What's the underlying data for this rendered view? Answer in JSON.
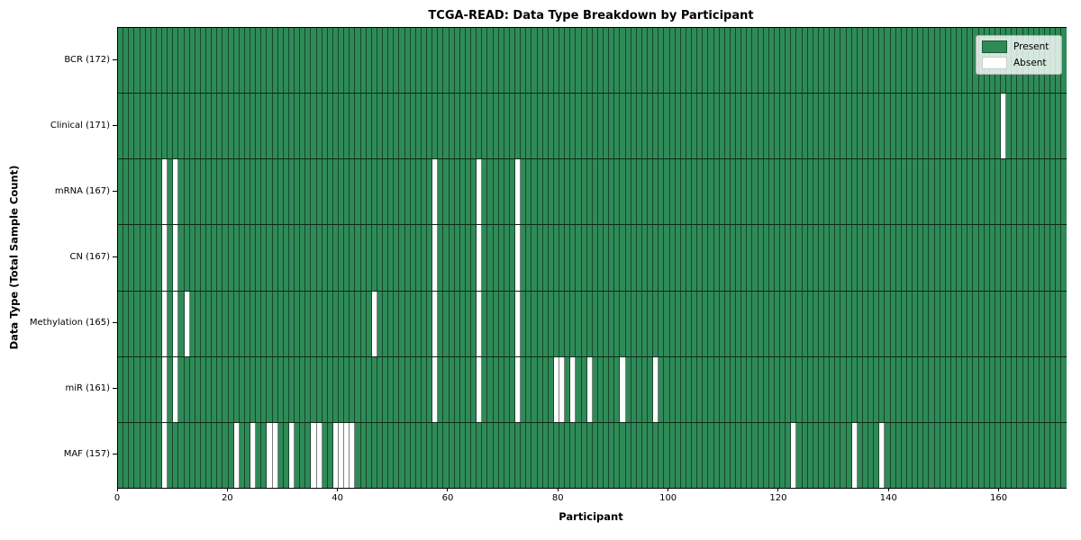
{
  "chart_data": {
    "type": "heatmap",
    "title": "TCGA-READ: Data Type Breakdown by Participant",
    "xlabel": "Participant",
    "ylabel": "Data Type (Total Sample Count)",
    "x_ticks": [
      0,
      20,
      40,
      60,
      80,
      100,
      120,
      140,
      160
    ],
    "x_range": [
      0,
      172
    ],
    "n_participants": 172,
    "grid": "per-participant column separators and per-row separators visible",
    "legend": {
      "position": "upper right",
      "entries": [
        {
          "key": "present",
          "label": "Present",
          "color": "#2E8B57"
        },
        {
          "key": "absent",
          "label": "Absent",
          "color": "#FFFFFF"
        }
      ]
    },
    "rows": [
      {
        "data_type": "BCR",
        "label": "BCR (172)",
        "total_sample_count": 172,
        "absent_participants": []
      },
      {
        "data_type": "Clinical",
        "label": "Clinical (171)",
        "total_sample_count": 171,
        "absent_participants": [
          160
        ]
      },
      {
        "data_type": "mRNA",
        "label": "mRNA (167)",
        "total_sample_count": 167,
        "absent_participants": [
          8,
          10,
          57,
          65,
          72
        ]
      },
      {
        "data_type": "CN",
        "label": "CN (167)",
        "total_sample_count": 167,
        "absent_participants": [
          8,
          10,
          57,
          65,
          72
        ]
      },
      {
        "data_type": "Methylation",
        "label": "Methylation (165)",
        "total_sample_count": 165,
        "absent_participants": [
          8,
          10,
          12,
          46,
          57,
          65,
          72
        ]
      },
      {
        "data_type": "miR",
        "label": "miR (161)",
        "total_sample_count": 161,
        "absent_participants": [
          8,
          10,
          57,
          65,
          72,
          79,
          80,
          82,
          85,
          91,
          97
        ]
      },
      {
        "data_type": "MAF",
        "label": "MAF (157)",
        "total_sample_count": 157,
        "absent_participants": [
          8,
          21,
          24,
          27,
          28,
          31,
          35,
          36,
          39,
          40,
          41,
          42,
          122,
          133,
          138
        ]
      }
    ],
    "colors": {
      "present": "#2E8B57",
      "absent": "#FFFFFF",
      "cell_edge": "rgba(0,0,0,0.5)",
      "row_edge": "rgba(0,0,0,0.7)",
      "plot_border": "#000000",
      "legend_background": "rgba(255,255,255,0.8)",
      "figure_background": "#FFFFFF",
      "text": "#000000"
    }
  }
}
